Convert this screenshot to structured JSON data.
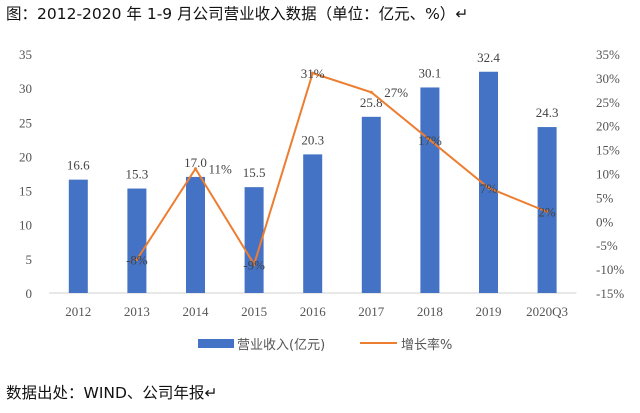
{
  "title": "图：2012-2020 年 1-9 月公司营业收入数据（单位：亿元、%）↵",
  "source": "数据出处：WIND、公司年报↵",
  "chart_data": {
    "type": "bar+line",
    "categories": [
      "2012",
      "2013",
      "2014",
      "2015",
      "2016",
      "2017",
      "2018",
      "2019",
      "2020Q3"
    ],
    "series": [
      {
        "name": "营业收入(亿元)",
        "type": "bar",
        "axis": "left",
        "color": "#4472C4",
        "values": [
          16.6,
          15.3,
          17.0,
          15.5,
          20.3,
          25.8,
          30.1,
          32.4,
          24.3
        ],
        "labels": [
          "16.6",
          "15.3",
          "17.0",
          "15.5",
          "20.3",
          "25.8",
          "30.1",
          "32.4",
          "24.3"
        ]
      },
      {
        "name": "增长率%",
        "type": "line",
        "axis": "right",
        "color": "#ED7D31",
        "values": [
          null,
          -8,
          11,
          -9,
          31,
          27,
          17,
          7,
          2
        ],
        "labels": [
          "",
          "-8%",
          "11%",
          "-9%",
          "31%",
          "27%",
          "17%",
          "7%",
          "2%"
        ]
      }
    ],
    "left_axis": {
      "ylim": [
        0,
        35
      ],
      "ticks": [
        "0",
        "5",
        "10",
        "15",
        "20",
        "25",
        "30",
        "35"
      ]
    },
    "right_axis": {
      "ylim": [
        -15,
        35
      ],
      "ticks": [
        "-15%",
        "-10%",
        "-5%",
        "0%",
        "5%",
        "10%",
        "15%",
        "20%",
        "25%",
        "30%",
        "35%"
      ]
    },
    "legend": "bottom",
    "grid": false
  }
}
